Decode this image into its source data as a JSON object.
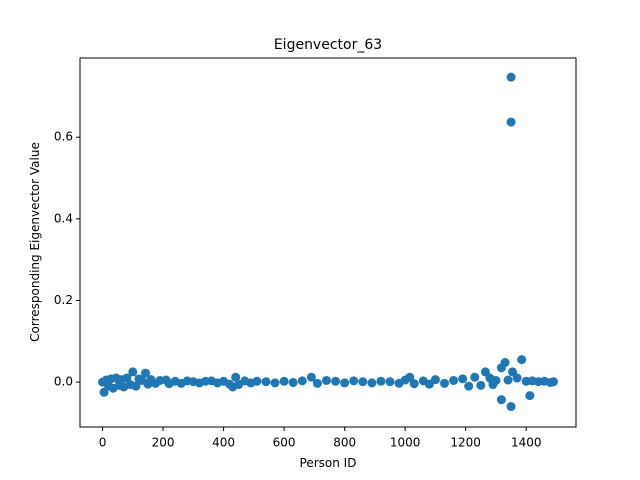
{
  "chart_data": {
    "type": "scatter",
    "title": "Eigenvector_63",
    "x_label": "Person ID",
    "y_label": "Corresponding Eigenvector Value",
    "color": "#1f77b4",
    "xlim": [
      -74.5,
      1564.5
    ],
    "ylim": [
      -0.11,
      0.794
    ],
    "xticks": [
      0,
      200,
      400,
      600,
      800,
      1000,
      1200,
      1400
    ],
    "yticks": [
      {
        "value": 0,
        "label": "0.0"
      },
      0.2,
      0.4,
      0.6
    ],
    "x": [
      0,
      5,
      12,
      20,
      28,
      35,
      45,
      55,
      62,
      70,
      80,
      92,
      100,
      110,
      120,
      130,
      142,
      150,
      160,
      175,
      190,
      210,
      220,
      240,
      260,
      280,
      300,
      320,
      340,
      360,
      380,
      400,
      420,
      430,
      440,
      450,
      470,
      490,
      510,
      540,
      570,
      600,
      630,
      660,
      690,
      710,
      740,
      770,
      800,
      830,
      860,
      890,
      920,
      950,
      980,
      1000,
      1015,
      1030,
      1060,
      1080,
      1100,
      1130,
      1160,
      1190,
      1210,
      1230,
      1250,
      1265,
      1280,
      1290,
      1300,
      1318,
      1318,
      1330,
      1340,
      1350,
      1350,
      1350,
      1355,
      1370,
      1385,
      1400,
      1412,
      1420,
      1440,
      1460,
      1480,
      1490
    ],
    "y": [
      0,
      -0.025,
      0.005,
      -0.01,
      0.008,
      -0.015,
      0.01,
      -0.008,
      0.006,
      -0.012,
      0.01,
      -0.006,
      0.025,
      -0.01,
      0.008,
      0.004,
      0.022,
      -0.005,
      0.006,
      -0.003,
      0.004,
      0.005,
      -0.004,
      0.002,
      -0.003,
      0.003,
      0.001,
      -0.002,
      0.002,
      0.003,
      -0.002,
      0.002,
      -0.005,
      -0.012,
      0.012,
      -0.006,
      0.003,
      -0.002,
      0.002,
      0.001,
      -0.002,
      0.002,
      -0.001,
      0.003,
      0.012,
      -0.003,
      0.004,
      0.002,
      -0.002,
      0.003,
      0.001,
      -0.002,
      0.002,
      0.001,
      -0.003,
      0.005,
      0.012,
      -0.004,
      0.003,
      -0.005,
      0.006,
      -0.003,
      0.004,
      0.008,
      -0.01,
      0.012,
      -0.008,
      0.025,
      0.01,
      -0.006,
      0.004,
      -0.043,
      0.035,
      0.048,
      0.005,
      0.747,
      0.637,
      -0.06,
      0.025,
      0.01,
      0.055,
      0.002,
      -0.033,
      0.003,
      0.001,
      0.002,
      -0.001,
      0.001
    ]
  }
}
